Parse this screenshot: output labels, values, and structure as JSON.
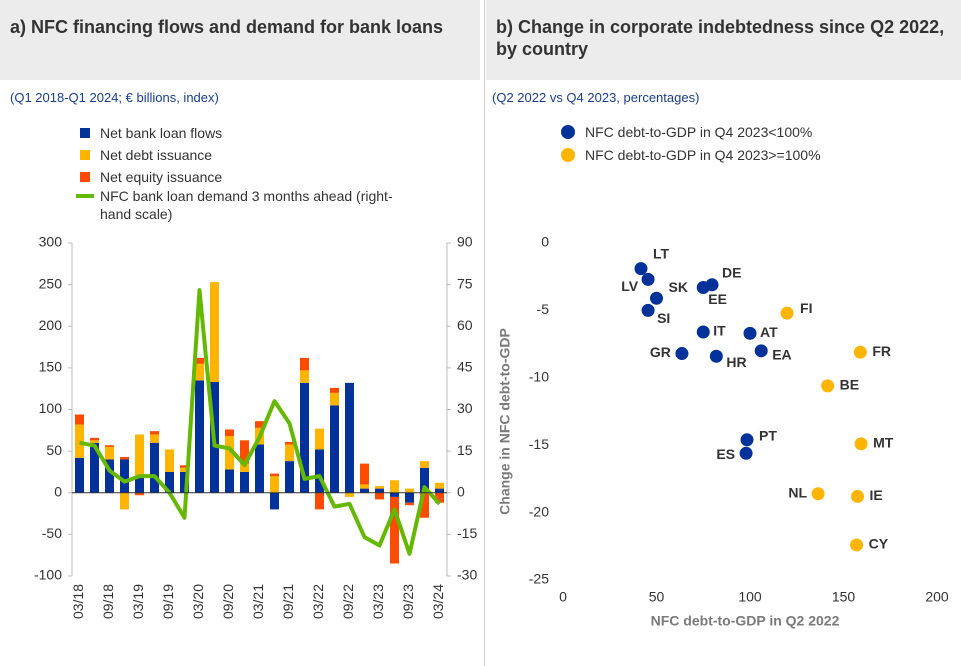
{
  "chart_data": [
    {
      "type": "bar",
      "stacked": true,
      "title": "a) NFC financing flows and demand for bank loans",
      "subtitle": "(Q1 2018-Q1 2024; € billions, index)",
      "categories": [
        "03/18",
        null,
        "09/18",
        null,
        "03/19",
        null,
        "09/19",
        null,
        "03/20",
        null,
        "09/20",
        null,
        "03/21",
        null,
        "09/21",
        null,
        "03/22",
        null,
        "09/22",
        null,
        "03/23",
        null,
        "09/23",
        null,
        "03/24"
      ],
      "series": [
        {
          "name": "Net bank loan flows",
          "color": "#003299",
          "values": [
            42,
            60,
            40,
            40,
            20,
            60,
            25,
            25,
            135,
            133,
            28,
            25,
            58,
            -20,
            38,
            132,
            52,
            105,
            132,
            5,
            5,
            -5,
            -12,
            30,
            5
          ]
        },
        {
          "name": "Net debt issuance",
          "color": "#ffb400",
          "values": [
            40,
            3,
            15,
            -20,
            50,
            10,
            27,
            5,
            20,
            120,
            40,
            10,
            20,
            20,
            20,
            15,
            25,
            15,
            -5,
            5,
            3,
            15,
            5,
            8,
            7
          ]
        },
        {
          "name": "Net equity issuance",
          "color": "#ff4b00",
          "values": [
            12,
            3,
            2,
            3,
            -3,
            4,
            0,
            3,
            7,
            0,
            8,
            28,
            8,
            3,
            3,
            15,
            -20,
            6,
            0,
            25,
            -8,
            -80,
            -3,
            -30,
            -12
          ]
        },
        {
          "name": "NFC bank loan demand 3 months ahead (right-hand scale)",
          "color": "#65b800",
          "type": "line",
          "axis": "y2",
          "values": [
            18,
            17,
            8,
            4,
            6,
            6,
            0,
            -9,
            73,
            17,
            16,
            10,
            20,
            33,
            25,
            5,
            6,
            -5,
            -4,
            -16,
            -19,
            -6,
            -22,
            2,
            -4
          ]
        }
      ],
      "ylim": [
        -100,
        300
      ],
      "yticks": [
        -100,
        -50,
        0,
        50,
        100,
        150,
        200,
        250,
        300
      ],
      "y2lim": [
        -30,
        90
      ],
      "y2ticks": [
        -30,
        -15,
        0,
        15,
        30,
        45,
        60,
        75,
        90
      ]
    },
    {
      "type": "scatter",
      "title": "b) Change in corporate indebtedness since Q2 2022, by country",
      "subtitle": "(Q2 2022 vs Q4 2023, percentages)",
      "x_label": "NFC debt-to-GDP in Q2 2022",
      "y_label": "Change in NFC debt-to-GDP",
      "series": [
        {
          "name": "NFC debt-to-GDP in Q4 2023<100%",
          "color": "#003299",
          "labels": [
            "LT",
            "LV",
            "SK",
            "EE",
            "DE",
            "SI",
            "IT",
            "AT",
            "GR",
            "HR",
            "EA",
            "PT",
            "ES"
          ],
          "x": [
            41.7,
            45.5,
            50,
            75,
            79.7,
            45.5,
            75,
            100,
            63.6,
            82,
            106,
            98.4,
            97.9
          ],
          "values": [
            -1.9,
            -2.7,
            -4.1,
            -3.3,
            -3.1,
            -5.0,
            -6.6,
            -6.7,
            -8.2,
            -8.4,
            -8.0,
            -14.6,
            -15.6
          ]
        },
        {
          "name": "NFC debt-to-GDP in Q4 2023>=100%",
          "color": "#ffb400",
          "labels": [
            "FI",
            "FR",
            "BE",
            "NL",
            "MT",
            "IE",
            "CY"
          ],
          "x": [
            119.8,
            159,
            141.5,
            136.4,
            159.4,
            157.5,
            157
          ],
          "values": [
            -5.2,
            -8.1,
            -10.6,
            -18.6,
            -14.9,
            -18.8,
            -22.4
          ]
        }
      ],
      "xlim": [
        0,
        200
      ],
      "xticks": [
        0,
        50,
        100,
        150,
        200
      ],
      "ylim": [
        -25,
        0
      ],
      "yticks": [
        -25,
        -20,
        -15,
        -10,
        -5,
        0
      ]
    }
  ]
}
